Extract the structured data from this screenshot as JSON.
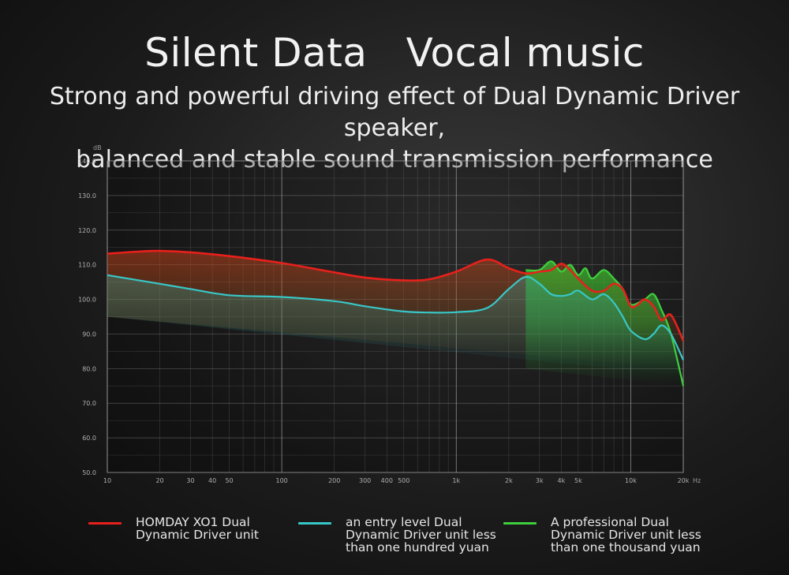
{
  "title": "Silent Data   Vocal music",
  "subtitle_lines": [
    "Strong and powerful driving effect of Dual Dynamic Driver speaker,",
    "balanced and stable sound transmission performance"
  ],
  "chart_data": {
    "type": "line",
    "y_unit": "dB",
    "x_unit": "Hz",
    "x_scale": "log",
    "xlim": [
      10,
      20000
    ],
    "ylim": [
      50,
      140
    ],
    "y_ticks": [
      50,
      60,
      70,
      80,
      90,
      100,
      110,
      120,
      130,
      140
    ],
    "y_tick_labels": [
      "50.0",
      "60.0",
      "70.0",
      "80.0",
      "90.0",
      "100.0",
      "110.0",
      "120.0",
      "130.0",
      "140.0"
    ],
    "x_ticks": [
      10,
      20,
      30,
      40,
      50,
      100,
      200,
      300,
      400,
      500,
      1000,
      2000,
      3000,
      4000,
      5000,
      10000,
      20000
    ],
    "x_tick_labels": [
      "10",
      "20",
      "30",
      "40",
      "50",
      "100",
      "200",
      "300",
      "400",
      "500",
      "1k",
      "2k",
      "3k",
      "4k",
      "5k",
      "10k",
      "20k"
    ],
    "grid": true,
    "legend_position": "bottom",
    "series": [
      {
        "name": "HOMDAY XO1 Dual Dynamic Driver unit",
        "color": "#e8201c",
        "points": [
          [
            10,
            113.2
          ],
          [
            15,
            113.8
          ],
          [
            20,
            114
          ],
          [
            30,
            113.6
          ],
          [
            50,
            112.5
          ],
          [
            100,
            110.5
          ],
          [
            200,
            107.8
          ],
          [
            300,
            106.3
          ],
          [
            500,
            105.5
          ],
          [
            700,
            105.8
          ],
          [
            1000,
            108
          ],
          [
            1500,
            111.5
          ],
          [
            2000,
            109
          ],
          [
            2500,
            107.5
          ],
          [
            3000,
            108
          ],
          [
            3500,
            108.5
          ],
          [
            4000,
            110.3
          ],
          [
            4500,
            108.5
          ],
          [
            5000,
            106
          ],
          [
            6000,
            102.5
          ],
          [
            7000,
            102.5
          ],
          [
            8000,
            104.5
          ],
          [
            9000,
            103
          ],
          [
            10000,
            98
          ],
          [
            11000,
            98.5
          ],
          [
            12000,
            100
          ],
          [
            13500,
            98
          ],
          [
            15000,
            94
          ],
          [
            17000,
            95.5
          ],
          [
            20000,
            88
          ]
        ]
      },
      {
        "name": "an entry level Dual Dynamic Driver unit less than one hundred yuan",
        "color": "#38c7c7",
        "points": [
          [
            10,
            107
          ],
          [
            20,
            104.5
          ],
          [
            30,
            103
          ],
          [
            50,
            101.2
          ],
          [
            100,
            100.7
          ],
          [
            200,
            99.5
          ],
          [
            300,
            98
          ],
          [
            500,
            96.5
          ],
          [
            700,
            96.2
          ],
          [
            1000,
            96.3
          ],
          [
            1500,
            97.5
          ],
          [
            2000,
            103
          ],
          [
            2500,
            106.5
          ],
          [
            3000,
            104.5
          ],
          [
            3500,
            101.5
          ],
          [
            4000,
            101
          ],
          [
            4500,
            101.5
          ],
          [
            5000,
            102.5
          ],
          [
            6000,
            100
          ],
          [
            7000,
            101.5
          ],
          [
            8000,
            99
          ],
          [
            9000,
            95
          ],
          [
            10000,
            91
          ],
          [
            12000,
            88.5
          ],
          [
            13500,
            90
          ],
          [
            15000,
            92.5
          ],
          [
            17000,
            90
          ],
          [
            20000,
            82.5
          ]
        ]
      },
      {
        "name": "A professional Dual Dynamic Driver unit less than one thousand yuan",
        "color": "#3ecf3e",
        "points": [
          [
            2500,
            108.5
          ],
          [
            3000,
            108.5
          ],
          [
            3500,
            111
          ],
          [
            4000,
            108
          ],
          [
            4500,
            110
          ],
          [
            5000,
            107
          ],
          [
            5500,
            109
          ],
          [
            6000,
            106
          ],
          [
            7000,
            108.5
          ],
          [
            8000,
            106
          ],
          [
            9000,
            103
          ],
          [
            10000,
            98.5
          ],
          [
            12000,
            100
          ],
          [
            13500,
            101.5
          ],
          [
            15000,
            97
          ],
          [
            17000,
            90
          ],
          [
            20000,
            75
          ]
        ]
      }
    ]
  }
}
